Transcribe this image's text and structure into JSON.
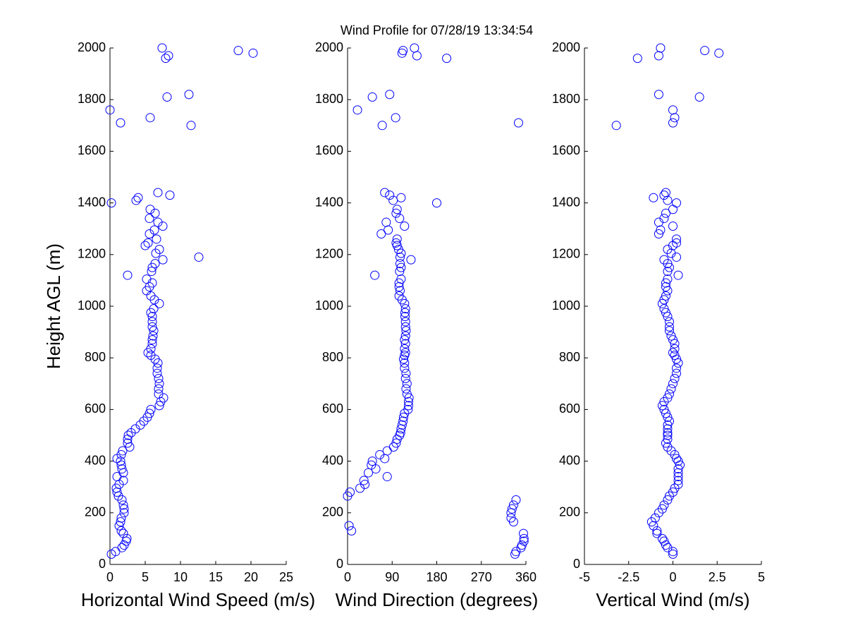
{
  "chart_data": [
    {
      "type": "scatter",
      "x_label": "Horizontal Wind Speed (m/s)",
      "y_label": "Height AGL (m)",
      "color": "#0000ff",
      "x": [
        0.2,
        0.8,
        1.7,
        2.0,
        2.3,
        2.4,
        1.9,
        1.6,
        1.3,
        1.5,
        1.6,
        2.0,
        2.0,
        1.9,
        1.7,
        1.2,
        1.0,
        0.9,
        1.3,
        1.9,
        1.0,
        1.9,
        1.7,
        1.6,
        1.5,
        1.0,
        1.6,
        1.8,
        2.8,
        2.5,
        2.5,
        2.6,
        3.0,
        3.6,
        4.3,
        4.8,
        5.3,
        5.6,
        5.8,
        7.0,
        7.2,
        7.6,
        6.9,
        6.9,
        7.0,
        6.9,
        6.7,
        6.7,
        6.8,
        6.4,
        5.8,
        5.4,
        5.8,
        6.0,
        6.0,
        6.1,
        6.2,
        6.0,
        6.0,
        6.0,
        5.8,
        6.2,
        7.0,
        6.3,
        5.8,
        5.2,
        5.6,
        6.0,
        5.2,
        2.5,
        5.9,
        6.0,
        6.4,
        7.5,
        12.6,
        6.5,
        7.0,
        5.0,
        5.4,
        6.6,
        5.6,
        6.3,
        7.5,
        6.8,
        5.6,
        6.4,
        5.7,
        0.2,
        3.7,
        4.0,
        8.5,
        6.8,
        11.5,
        1.5,
        5.7,
        0.0,
        8.1,
        11.2,
        7.9,
        8.3,
        20.3,
        18.2,
        7.4
      ],
      "values": [
        40,
        50,
        65,
        75,
        90,
        100,
        120,
        130,
        150,
        165,
        180,
        200,
        215,
        230,
        250,
        265,
        280,
        295,
        310,
        325,
        340,
        355,
        370,
        385,
        400,
        410,
        425,
        440,
        455,
        470,
        485,
        500,
        510,
        525,
        540,
        555,
        570,
        585,
        600,
        615,
        630,
        645,
        660,
        680,
        700,
        720,
        740,
        760,
        780,
        795,
        810,
        820,
        835,
        855,
        870,
        885,
        905,
        920,
        940,
        960,
        975,
        990,
        1010,
        1025,
        1040,
        1060,
        1075,
        1090,
        1105,
        1120,
        1135,
        1150,
        1165,
        1180,
        1190,
        1205,
        1220,
        1235,
        1245,
        1260,
        1280,
        1295,
        1310,
        1325,
        1340,
        1360,
        1375,
        1400,
        1410,
        1420,
        1430,
        1440,
        1700,
        1710,
        1730,
        1760,
        1810,
        1820,
        1960,
        1970,
        1980,
        1990,
        2000
      ],
      "xlim": [
        0,
        25
      ],
      "xticks": [
        0,
        5,
        10,
        15,
        20,
        25
      ],
      "ylim": [
        0,
        2000
      ],
      "yticks": [
        0,
        200,
        400,
        600,
        800,
        1000,
        1200,
        1400,
        1600,
        1800,
        2000
      ]
    },
    {
      "type": "scatter",
      "title": "Wind Profile for  07/28/19 13:34:54",
      "x_label": "Wind Direction (degrees)",
      "color": "#0000ff",
      "x": [
        338,
        340,
        350,
        352,
        356,
        356,
        355,
        8,
        3,
        335,
        330,
        330,
        332,
        335,
        340,
        0,
        5,
        25,
        35,
        33,
        80,
        42,
        57,
        48,
        50,
        75,
        65,
        80,
        93,
        98,
        100,
        105,
        107,
        108,
        110,
        112,
        113,
        115,
        122,
        123,
        123,
        124,
        120,
        118,
        120,
        117,
        118,
        115,
        115,
        113,
        115,
        117,
        115,
        117,
        115,
        117,
        118,
        117,
        117,
        116,
        116,
        117,
        115,
        110,
        104,
        106,
        104,
        104,
        108,
        55,
        105,
        108,
        106,
        128,
        106,
        108,
        103,
        100,
        98,
        100,
        68,
        82,
        115,
        78,
        105,
        98,
        100,
        180,
        92,
        108,
        85,
        75,
        70,
        345,
        97,
        20,
        50,
        85,
        200,
        140,
        110,
        112,
        135
      ],
      "values": [
        40,
        50,
        65,
        75,
        90,
        100,
        120,
        130,
        150,
        165,
        180,
        200,
        215,
        230,
        250,
        265,
        280,
        295,
        310,
        325,
        340,
        355,
        370,
        385,
        400,
        410,
        425,
        440,
        455,
        470,
        485,
        500,
        510,
        525,
        540,
        555,
        570,
        585,
        600,
        615,
        630,
        645,
        660,
        680,
        700,
        720,
        740,
        760,
        780,
        795,
        810,
        820,
        835,
        855,
        870,
        885,
        905,
        920,
        940,
        960,
        975,
        990,
        1010,
        1025,
        1040,
        1060,
        1075,
        1090,
        1105,
        1120,
        1135,
        1150,
        1165,
        1180,
        1190,
        1205,
        1220,
        1235,
        1245,
        1260,
        1280,
        1295,
        1310,
        1325,
        1340,
        1360,
        1375,
        1400,
        1410,
        1420,
        1430,
        1440,
        1700,
        1710,
        1730,
        1760,
        1810,
        1820,
        1960,
        1970,
        1980,
        1990,
        2000
      ],
      "xlim": [
        0,
        360
      ],
      "xticks": [
        0,
        90,
        180,
        270,
        360
      ],
      "ylim": [
        0,
        2000
      ],
      "yticks": [
        0,
        200,
        400,
        600,
        800,
        1000,
        1200,
        1400,
        1600,
        1800,
        2000
      ]
    },
    {
      "type": "scatter",
      "x_label": "Vertical Wind (m/s)",
      "color": "#0000ff",
      "x": [
        0.0,
        0.0,
        -0.3,
        -0.4,
        -0.5,
        -0.6,
        -0.9,
        -0.9,
        -1.1,
        -1.2,
        -1.0,
        -0.8,
        -0.6,
        -0.5,
        -0.3,
        -0.2,
        0.0,
        0.1,
        0.3,
        0.3,
        0.3,
        0.3,
        0.3,
        0.4,
        0.3,
        0.2,
        0.1,
        -0.1,
        -0.3,
        -0.4,
        -0.3,
        -0.3,
        -0.3,
        -0.3,
        -0.3,
        -0.2,
        -0.3,
        -0.4,
        -0.5,
        -0.6,
        -0.5,
        -0.3,
        -0.2,
        -0.1,
        0.0,
        0.1,
        0.2,
        0.2,
        0.3,
        0.2,
        0.1,
        0.0,
        0.1,
        0.1,
        0.0,
        -0.1,
        -0.2,
        -0.2,
        -0.2,
        -0.3,
        -0.4,
        -0.5,
        -0.6,
        -0.5,
        -0.4,
        -0.3,
        -0.4,
        -0.4,
        -0.3,
        0.3,
        -0.3,
        -0.2,
        -0.3,
        -0.5,
        0.2,
        -0.1,
        -0.3,
        0.0,
        0.2,
        0.2,
        -0.8,
        -0.7,
        0.0,
        -0.8,
        -0.5,
        -0.4,
        0.0,
        0.2,
        -0.3,
        -1.1,
        -0.5,
        -0.4,
        -3.2,
        0.0,
        0.1,
        0.0,
        1.5,
        -0.8,
        -2.0,
        -0.8,
        2.6,
        1.8,
        -0.7
      ],
      "values": [
        40,
        50,
        65,
        75,
        90,
        100,
        120,
        130,
        150,
        165,
        180,
        200,
        215,
        230,
        250,
        265,
        280,
        295,
        310,
        325,
        340,
        355,
        370,
        385,
        400,
        410,
        425,
        440,
        455,
        470,
        485,
        500,
        510,
        525,
        540,
        555,
        570,
        585,
        600,
        615,
        630,
        645,
        660,
        680,
        700,
        720,
        740,
        760,
        780,
        795,
        810,
        820,
        835,
        855,
        870,
        885,
        905,
        920,
        940,
        960,
        975,
        990,
        1010,
        1025,
        1040,
        1060,
        1075,
        1090,
        1105,
        1120,
        1135,
        1150,
        1165,
        1180,
        1190,
        1205,
        1220,
        1235,
        1245,
        1260,
        1280,
        1295,
        1310,
        1325,
        1340,
        1360,
        1375,
        1400,
        1410,
        1420,
        1430,
        1440,
        1700,
        1710,
        1730,
        1760,
        1810,
        1820,
        1960,
        1970,
        1980,
        1990,
        2000
      ],
      "xlim": [
        -5,
        5
      ],
      "xticks": [
        -5,
        -2.5,
        0,
        2.5,
        5
      ],
      "ylim": [
        0,
        2000
      ],
      "yticks": [
        0,
        200,
        400,
        600,
        800,
        1000,
        1200,
        1400,
        1600,
        1800,
        2000
      ]
    }
  ]
}
